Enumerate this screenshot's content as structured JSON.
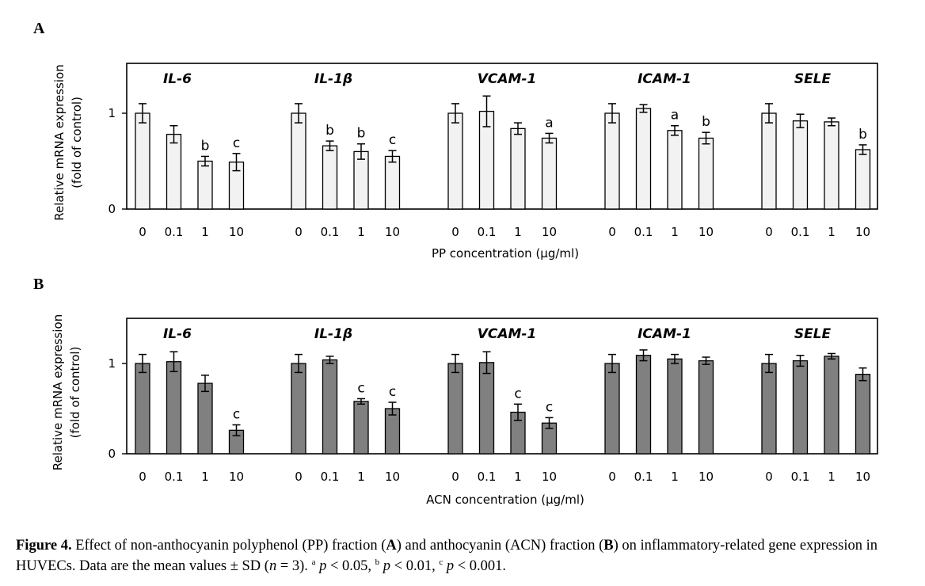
{
  "chart_data": [
    {
      "type": "bar",
      "panel": "A",
      "xlabel": "PP concentration (μg/ml)",
      "ylabel": [
        "Relative mRNA expression",
        "(fold of control)"
      ],
      "yticks": [
        0,
        1
      ],
      "ylim": [
        0,
        1.5
      ],
      "bar_color": "#f2f2f2",
      "groups": [
        {
          "gene": "IL-6",
          "categories": [
            "0",
            "0.1",
            "1",
            "10"
          ],
          "values": [
            1.0,
            0.78,
            0.5,
            0.49
          ],
          "errors": [
            0.1,
            0.09,
            0.05,
            0.09
          ],
          "sig": [
            "",
            "",
            "b",
            "c"
          ]
        },
        {
          "gene": "IL-1β",
          "categories": [
            "0",
            "0.1",
            "1",
            "10"
          ],
          "values": [
            1.0,
            0.66,
            0.6,
            0.55
          ],
          "errors": [
            0.1,
            0.05,
            0.08,
            0.06
          ],
          "sig": [
            "",
            "b",
            "b",
            "c"
          ]
        },
        {
          "gene": "VCAM-1",
          "categories": [
            "0",
            "0.1",
            "1",
            "10"
          ],
          "values": [
            1.0,
            1.02,
            0.84,
            0.74
          ],
          "errors": [
            0.1,
            0.16,
            0.06,
            0.05
          ],
          "sig": [
            "",
            "",
            "",
            "a"
          ]
        },
        {
          "gene": "ICAM-1",
          "categories": [
            "0",
            "0.1",
            "1",
            "10"
          ],
          "values": [
            1.0,
            1.05,
            0.82,
            0.74
          ],
          "errors": [
            0.1,
            0.04,
            0.05,
            0.06
          ],
          "sig": [
            "",
            "",
            "a",
            "b"
          ]
        },
        {
          "gene": "SELE",
          "categories": [
            "0",
            "0.1",
            "1",
            "10"
          ],
          "values": [
            1.0,
            0.92,
            0.91,
            0.62
          ],
          "errors": [
            0.1,
            0.07,
            0.04,
            0.05
          ],
          "sig": [
            "",
            "",
            "",
            "b"
          ]
        }
      ]
    },
    {
      "type": "bar",
      "panel": "B",
      "xlabel": "ACN concentration (μg/ml)",
      "ylabel": [
        "Relative mRNA expression",
        "(fold of control)"
      ],
      "yticks": [
        0,
        1
      ],
      "ylim": [
        0,
        1.5
      ],
      "bar_color": "#808080",
      "groups": [
        {
          "gene": "IL-6",
          "categories": [
            "0",
            "0.1",
            "1",
            "10"
          ],
          "values": [
            1.0,
            1.02,
            0.78,
            0.26
          ],
          "errors": [
            0.1,
            0.11,
            0.09,
            0.06
          ],
          "sig": [
            "",
            "",
            "",
            "c"
          ]
        },
        {
          "gene": "IL-1β",
          "categories": [
            "0",
            "0.1",
            "1",
            "10"
          ],
          "values": [
            1.0,
            1.04,
            0.58,
            0.5
          ],
          "errors": [
            0.1,
            0.04,
            0.03,
            0.07
          ],
          "sig": [
            "",
            "",
            "c",
            "c"
          ]
        },
        {
          "gene": "VCAM-1",
          "categories": [
            "0",
            "0.1",
            "1",
            "10"
          ],
          "values": [
            1.0,
            1.01,
            0.46,
            0.34
          ],
          "errors": [
            0.1,
            0.12,
            0.09,
            0.06
          ],
          "sig": [
            "",
            "",
            "c",
            "c"
          ]
        },
        {
          "gene": "ICAM-1",
          "categories": [
            "0",
            "0.1",
            "1",
            "10"
          ],
          "values": [
            1.0,
            1.09,
            1.05,
            1.03
          ],
          "errors": [
            0.1,
            0.06,
            0.05,
            0.04
          ],
          "sig": [
            "",
            "",
            "",
            ""
          ]
        },
        {
          "gene": "SELE",
          "categories": [
            "0",
            "0.1",
            "1",
            "10"
          ],
          "values": [
            1.0,
            1.03,
            1.08,
            0.88
          ],
          "errors": [
            0.1,
            0.06,
            0.03,
            0.07
          ],
          "sig": [
            "",
            "",
            "",
            ""
          ]
        }
      ]
    }
  ],
  "caption": {
    "label": "Figure 4.",
    "text_1": " Effect of non-anthocyanin polyphenol (PP) fraction (",
    "a_bold": "A",
    "text_2": ") and anthocyanin (ACN) fraction (",
    "b_bold": "B",
    "text_3": ") on inflammatory-related gene expression in HUVECs. Data are the mean values ± SD (",
    "n_italic": "n",
    "text_4": " = 3). ",
    "sup_a": "a",
    "p_1": "p",
    "text_5": " < 0.05, ",
    "sup_b": "b",
    "p_2": "p",
    "text_6": " < 0.01, ",
    "sup_c": "c",
    "p_3": "p",
    "text_7": " < 0.001."
  }
}
